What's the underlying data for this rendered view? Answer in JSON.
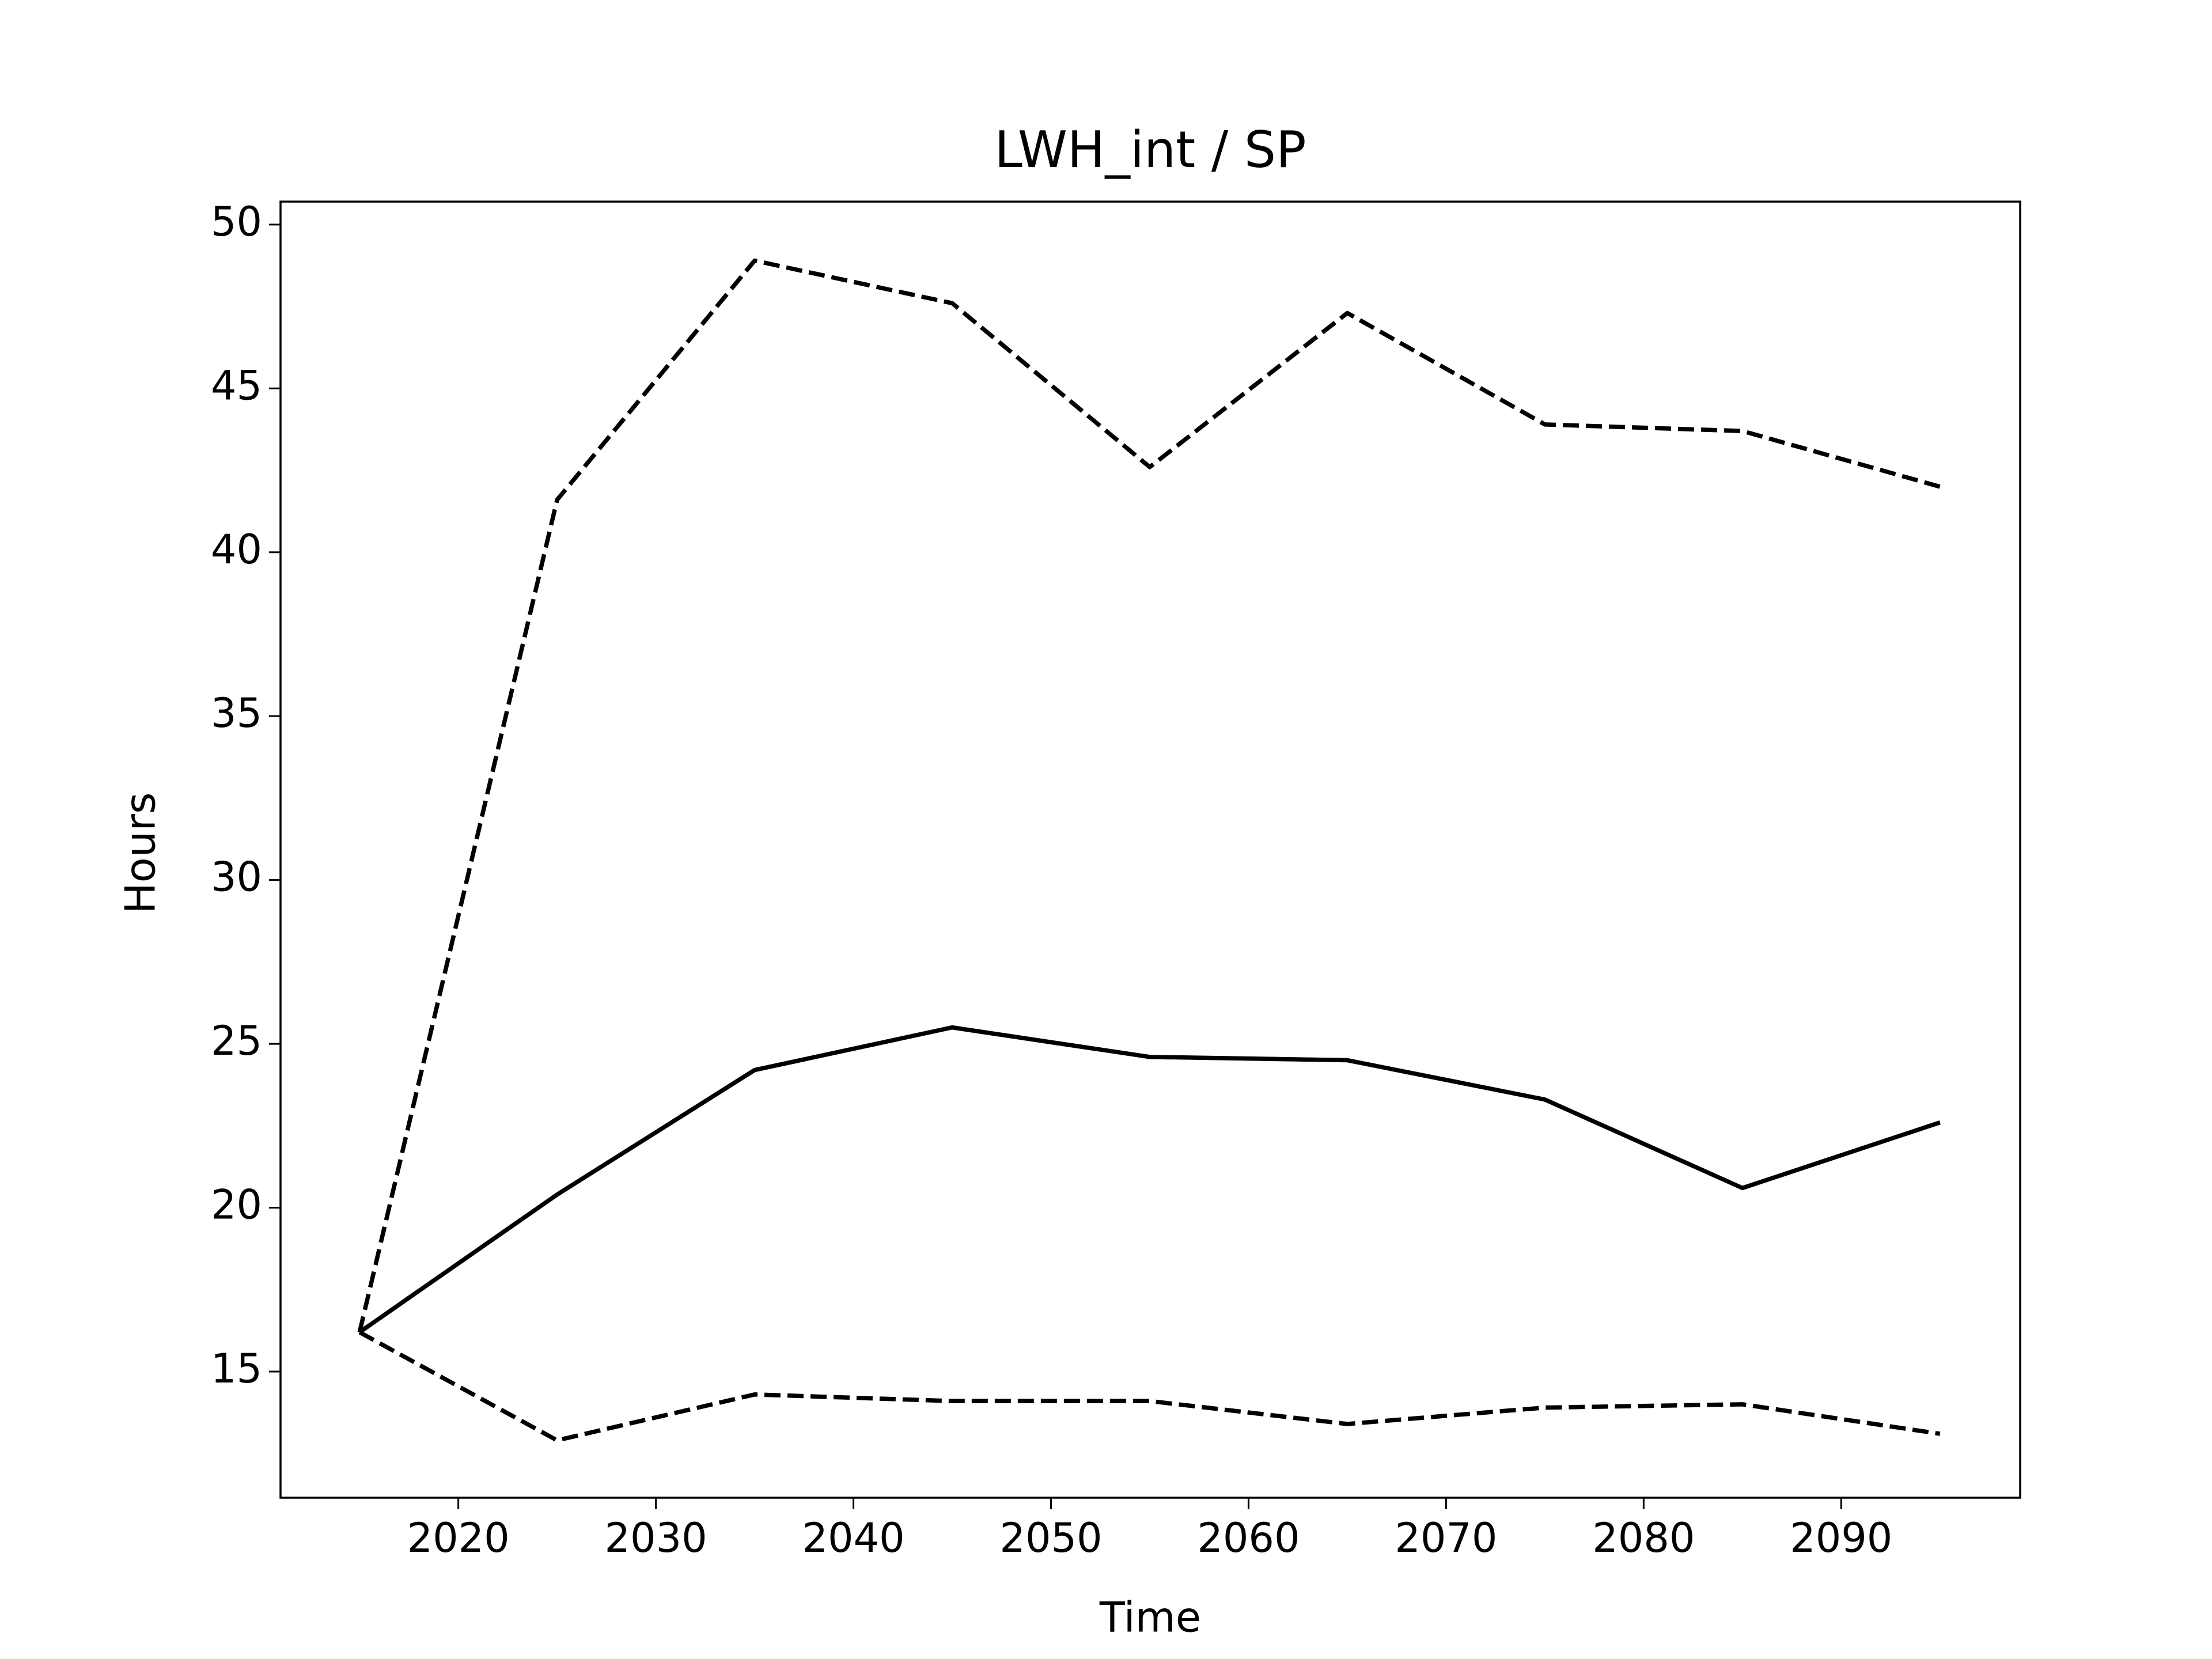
{
  "chart_data": {
    "type": "line",
    "title": "LWH_int / SP",
    "xlabel": "Time",
    "ylabel": "Hours",
    "x": [
      2015,
      2025,
      2035,
      2045,
      2055,
      2065,
      2075,
      2085,
      2095
    ],
    "series": [
      {
        "color": "#000000",
        "linestyle": "solid",
        "values": [
          16.2,
          20.4,
          24.2,
          25.5,
          24.6,
          24.5,
          23.3,
          20.6,
          22.6
        ]
      },
      {
        "color": "#000000",
        "linestyle": "dashed",
        "values": [
          16.2,
          41.6,
          48.9,
          47.6,
          42.6,
          47.3,
          43.9,
          43.7,
          42.0
        ]
      },
      {
        "color": "#000000",
        "linestyle": "dashed",
        "values": [
          16.2,
          12.9,
          14.3,
          14.1,
          14.1,
          13.4,
          13.9,
          14.0,
          13.1
        ]
      }
    ],
    "xlim": [
      2011.0,
      2099.06
    ],
    "ylim": [
      11.15,
      50.7
    ],
    "xticks": [
      2020,
      2030,
      2040,
      2050,
      2060,
      2070,
      2080,
      2090
    ],
    "yticks": [
      15,
      20,
      25,
      30,
      35,
      40,
      45,
      50
    ],
    "grid": false
  }
}
